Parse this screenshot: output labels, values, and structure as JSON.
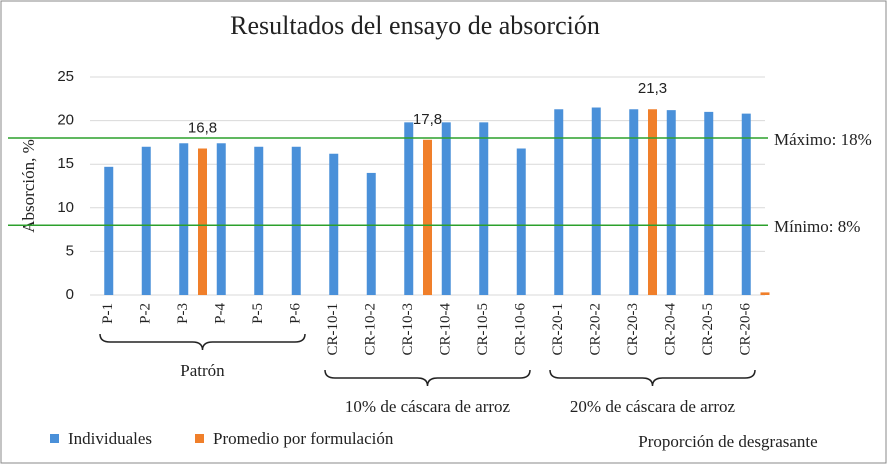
{
  "chart_data": {
    "type": "bar",
    "title": "Resultados del ensayo de absorción",
    "y_label": "Absorción, %",
    "x_label": "Proporción de desgrasante",
    "categories": [
      "P-1",
      "P-2",
      "P-3",
      "P-4",
      "P-5",
      "P-6",
      "CR-10-1",
      "CR-10-2",
      "CR-10-3",
      "CR-10-4",
      "CR-10-5",
      "CR-10-6",
      "CR-20-1",
      "CR-20-2",
      "CR-20-3",
      "CR-20-4",
      "CR-20-5",
      "CR-20-6"
    ],
    "groups": [
      "Patrón",
      "10% de cáscara de arroz",
      "20% de cáscara de arroz"
    ],
    "series": [
      {
        "name": "Individuales",
        "color": "#4a90d9",
        "values": [
          14.7,
          17.0,
          17.4,
          17.4,
          17.0,
          17.0,
          16.2,
          14.0,
          19.8,
          19.8,
          19.8,
          16.8,
          21.3,
          21.5,
          21.3,
          21.2,
          21.0,
          20.8
        ]
      },
      {
        "name": "Promedio por formulación",
        "color": "#f07f2a",
        "values": [
          null,
          null,
          16.8,
          null,
          null,
          null,
          null,
          null,
          17.8,
          null,
          null,
          null,
          null,
          null,
          21.3,
          null,
          null,
          0.3
        ],
        "value_labels": [
          null,
          null,
          "16,8",
          null,
          null,
          null,
          null,
          null,
          "17,8",
          null,
          null,
          null,
          null,
          null,
          "21,3",
          null,
          null,
          null
        ]
      }
    ],
    "reference_lines": [
      {
        "value": 18,
        "label": "Máximo: 18%",
        "color": "#2ca02c"
      },
      {
        "value": 8,
        "label": "Mínimo: 8%",
        "color": "#2ca02c"
      }
    ],
    "ylim": [
      0,
      25
    ],
    "yticks": [
      0,
      5,
      10,
      15,
      20,
      25
    ],
    "grid": true
  }
}
